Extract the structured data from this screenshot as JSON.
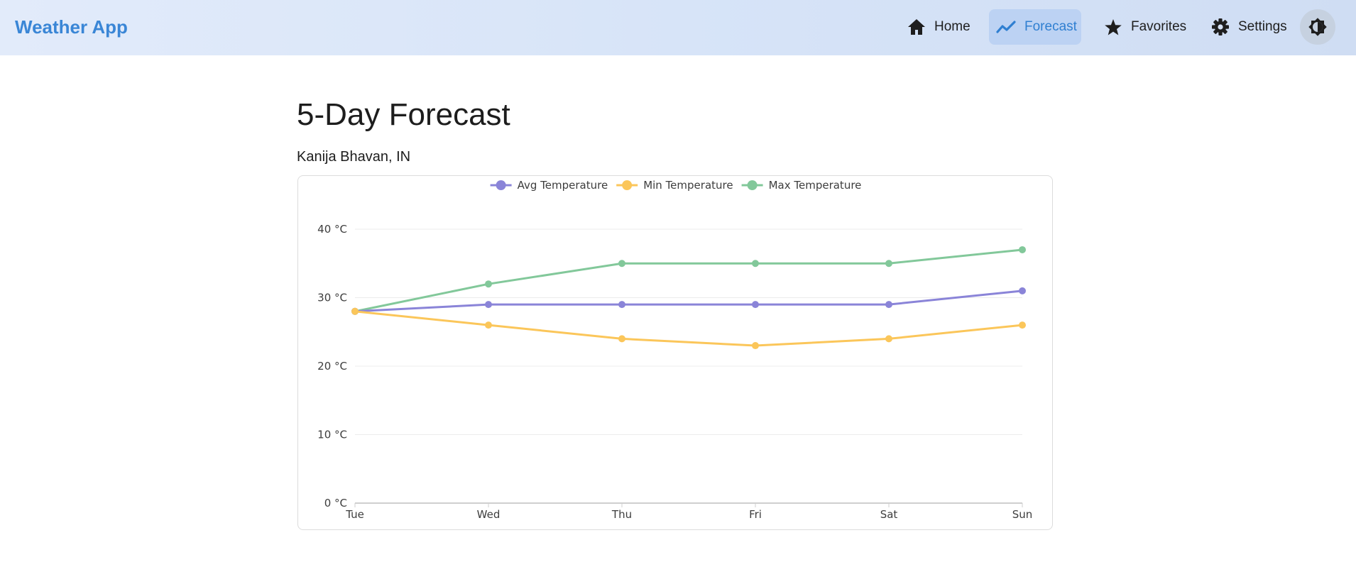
{
  "app": {
    "title": "Weather App"
  },
  "nav": {
    "items": [
      {
        "label": "Home",
        "icon": "home-icon",
        "active": false
      },
      {
        "label": "Forecast",
        "icon": "trend-icon",
        "active": true
      },
      {
        "label": "Favorites",
        "icon": "star-icon",
        "active": false
      },
      {
        "label": "Settings",
        "icon": "gear-icon",
        "active": false
      }
    ],
    "theme_toggle_icon": "brightness-icon"
  },
  "page": {
    "title": "5-Day Forecast",
    "location": "Kanija Bhavan, IN"
  },
  "colors": {
    "accent": "#3a86d6",
    "avg": "#8a84d8",
    "min": "#fbc65a",
    "max": "#82c89a"
  },
  "chart_data": {
    "type": "line",
    "categories": [
      "Tue",
      "Wed",
      "Thu",
      "Fri",
      "Sat",
      "Sun"
    ],
    "series": [
      {
        "name": "Avg Temperature",
        "color": "#8a84d8",
        "values": [
          28,
          29,
          29,
          29,
          29,
          31
        ]
      },
      {
        "name": "Min Temperature",
        "color": "#fbc65a",
        "values": [
          28,
          26,
          24,
          23,
          24,
          26
        ]
      },
      {
        "name": "Max Temperature",
        "color": "#82c89a",
        "values": [
          28,
          32,
          35,
          35,
          35,
          37
        ]
      }
    ],
    "yticks": [
      0,
      10,
      20,
      30,
      40
    ],
    "ytick_labels": [
      "0 °C",
      "10 °C",
      "20 °C",
      "30 °C",
      "40 °C"
    ],
    "ylim": [
      0,
      40
    ],
    "grid": true,
    "legend": "top-center"
  }
}
